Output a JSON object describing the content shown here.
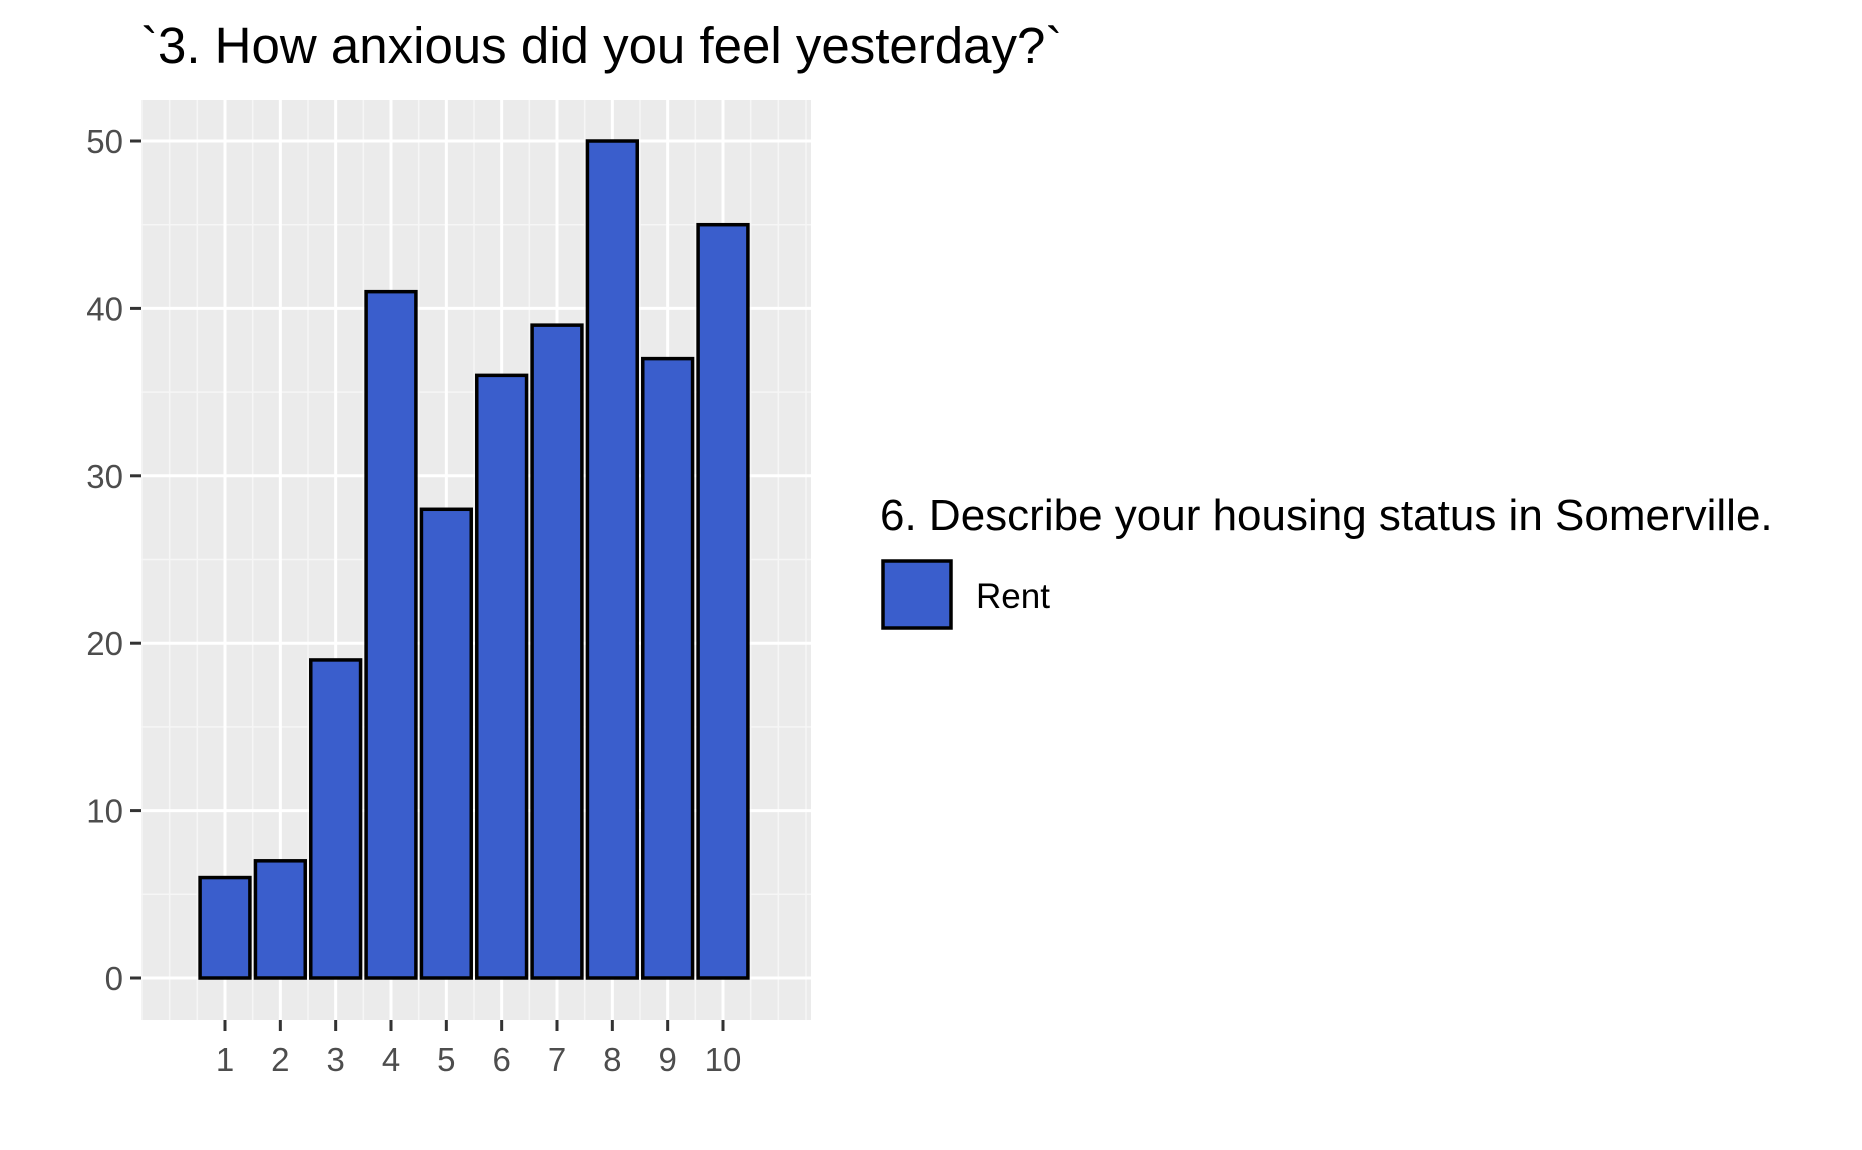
{
  "chart_data": {
    "type": "bar",
    "title": "`3. How anxious did you feel yesterday?`",
    "xlabel": "",
    "ylabel": "",
    "categories": [
      "1",
      "2",
      "3",
      "4",
      "5",
      "6",
      "7",
      "8",
      "9",
      "10"
    ],
    "series": [
      {
        "name": "Rent",
        "values": [
          6,
          7,
          19,
          41,
          28,
          36,
          39,
          50,
          37,
          45
        ],
        "color": "#3a5ecc"
      }
    ],
    "ylim": [
      0,
      52.5
    ],
    "yticks": [
      0,
      10,
      20,
      30,
      40,
      50
    ],
    "grid": true,
    "panel_background": "#ebebeb",
    "bar_outline_color": "#000000",
    "legend": {
      "title": "6. Describe your housing status in Somerville.",
      "position": "right",
      "items": [
        "Rent"
      ]
    }
  }
}
